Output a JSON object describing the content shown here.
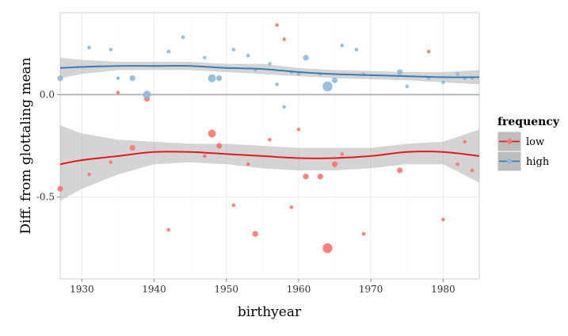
{
  "chart_data": {
    "type": "scatter",
    "xlabel": "birthyear",
    "ylabel": "Diff. from glottaling mean",
    "xlim": [
      1927,
      1985
    ],
    "ylim": [
      -0.9,
      0.4
    ],
    "x_ticks": [
      1930,
      1940,
      1950,
      1960,
      1970,
      1980
    ],
    "y_ticks": [
      0.0,
      -0.5
    ],
    "y_tick_labels": [
      "0.0",
      "-0.5"
    ],
    "reference_line_y": 0,
    "grid": true,
    "legend": {
      "title": "frequency",
      "position": "right",
      "entries": [
        "low",
        "high"
      ]
    },
    "series": [
      {
        "name": "low",
        "color": "#F8766D",
        "smooth_color": "#E41A1C",
        "points": [
          {
            "x": 1927,
            "y": -0.46,
            "size": 2
          },
          {
            "x": 1931,
            "y": -0.39,
            "size": 1
          },
          {
            "x": 1934,
            "y": -0.33,
            "size": 1
          },
          {
            "x": 1935,
            "y": 0.01,
            "size": 1
          },
          {
            "x": 1937,
            "y": -0.26,
            "size": 2
          },
          {
            "x": 1939,
            "y": -0.02,
            "size": 2
          },
          {
            "x": 1942,
            "y": -0.66,
            "size": 1
          },
          {
            "x": 1947,
            "y": -0.3,
            "size": 1
          },
          {
            "x": 1948,
            "y": -0.19,
            "size": 3
          },
          {
            "x": 1949,
            "y": -0.25,
            "size": 2
          },
          {
            "x": 1951,
            "y": -0.54,
            "size": 1
          },
          {
            "x": 1953,
            "y": -0.34,
            "size": 1
          },
          {
            "x": 1954,
            "y": -0.68,
            "size": 2
          },
          {
            "x": 1956,
            "y": -0.22,
            "size": 1
          },
          {
            "x": 1957,
            "y": 0.34,
            "size": 1
          },
          {
            "x": 1958,
            "y": 0.27,
            "size": 1
          },
          {
            "x": 1959,
            "y": -0.55,
            "size": 1
          },
          {
            "x": 1960,
            "y": -0.17,
            "size": 1
          },
          {
            "x": 1961,
            "y": -0.4,
            "size": 2
          },
          {
            "x": 1963,
            "y": -0.4,
            "size": 2
          },
          {
            "x": 1964,
            "y": -0.75,
            "size": 4
          },
          {
            "x": 1965,
            "y": -0.34,
            "size": 2
          },
          {
            "x": 1966,
            "y": -0.29,
            "size": 1
          },
          {
            "x": 1969,
            "y": -0.68,
            "size": 1
          },
          {
            "x": 1974,
            "y": -0.37,
            "size": 2
          },
          {
            "x": 1978,
            "y": 0.21,
            "size": 1
          },
          {
            "x": 1980,
            "y": -0.61,
            "size": 1
          },
          {
            "x": 1982,
            "y": -0.34,
            "size": 1
          },
          {
            "x": 1983,
            "y": -0.23,
            "size": 1
          },
          {
            "x": 1984,
            "y": -0.37,
            "size": 1
          }
        ],
        "smooth": {
          "x": [
            1927,
            1930,
            1935,
            1940,
            1945,
            1950,
            1955,
            1960,
            1965,
            1970,
            1975,
            1980,
            1985
          ],
          "y": [
            -0.34,
            -0.32,
            -0.3,
            -0.28,
            -0.28,
            -0.29,
            -0.3,
            -0.31,
            -0.31,
            -0.3,
            -0.28,
            -0.28,
            -0.3
          ],
          "upper": [
            -0.15,
            -0.19,
            -0.22,
            -0.23,
            -0.24,
            -0.24,
            -0.25,
            -0.26,
            -0.26,
            -0.26,
            -0.24,
            -0.23,
            -0.17
          ],
          "lower": [
            -0.52,
            -0.46,
            -0.39,
            -0.34,
            -0.33,
            -0.34,
            -0.36,
            -0.37,
            -0.37,
            -0.36,
            -0.34,
            -0.34,
            -0.43
          ]
        }
      },
      {
        "name": "high",
        "color": "#8DB8DD",
        "smooth_color": "#377EB8",
        "points": [
          {
            "x": 1927,
            "y": 0.08,
            "size": 2
          },
          {
            "x": 1931,
            "y": 0.23,
            "size": 1
          },
          {
            "x": 1934,
            "y": 0.22,
            "size": 1
          },
          {
            "x": 1935,
            "y": 0.08,
            "size": 1
          },
          {
            "x": 1937,
            "y": 0.08,
            "size": 2
          },
          {
            "x": 1939,
            "y": 0.0,
            "size": 3
          },
          {
            "x": 1942,
            "y": 0.21,
            "size": 1
          },
          {
            "x": 1944,
            "y": 0.28,
            "size": 1
          },
          {
            "x": 1947,
            "y": 0.18,
            "size": 1
          },
          {
            "x": 1948,
            "y": 0.08,
            "size": 3
          },
          {
            "x": 1949,
            "y": 0.08,
            "size": 2
          },
          {
            "x": 1951,
            "y": 0.22,
            "size": 1
          },
          {
            "x": 1953,
            "y": 0.19,
            "size": 1
          },
          {
            "x": 1954,
            "y": 0.12,
            "size": 1
          },
          {
            "x": 1956,
            "y": 0.15,
            "size": 1
          },
          {
            "x": 1957,
            "y": 0.05,
            "size": 1
          },
          {
            "x": 1958,
            "y": -0.06,
            "size": 1
          },
          {
            "x": 1959,
            "y": 0.11,
            "size": 1
          },
          {
            "x": 1960,
            "y": 0.1,
            "size": 1
          },
          {
            "x": 1961,
            "y": 0.18,
            "size": 2
          },
          {
            "x": 1963,
            "y": 0.1,
            "size": 1
          },
          {
            "x": 1964,
            "y": 0.04,
            "size": 4
          },
          {
            "x": 1965,
            "y": 0.07,
            "size": 2
          },
          {
            "x": 1966,
            "y": 0.24,
            "size": 1
          },
          {
            "x": 1968,
            "y": 0.22,
            "size": 1
          },
          {
            "x": 1969,
            "y": 0.1,
            "size": 1
          },
          {
            "x": 1974,
            "y": 0.11,
            "size": 2
          },
          {
            "x": 1975,
            "y": 0.04,
            "size": 1
          },
          {
            "x": 1978,
            "y": 0.08,
            "size": 1
          },
          {
            "x": 1980,
            "y": 0.06,
            "size": 1
          },
          {
            "x": 1982,
            "y": 0.1,
            "size": 1
          },
          {
            "x": 1983,
            "y": 0.08,
            "size": 1
          },
          {
            "x": 1984,
            "y": 0.08,
            "size": 1
          }
        ],
        "smooth": {
          "x": [
            1927,
            1930,
            1935,
            1940,
            1945,
            1950,
            1955,
            1960,
            1965,
            1970,
            1975,
            1980,
            1985
          ],
          "y": [
            0.13,
            0.135,
            0.14,
            0.14,
            0.14,
            0.13,
            0.125,
            0.11,
            0.1,
            0.095,
            0.09,
            0.085,
            0.085
          ],
          "upper": [
            0.18,
            0.17,
            0.16,
            0.16,
            0.16,
            0.15,
            0.15,
            0.13,
            0.12,
            0.115,
            0.11,
            0.11,
            0.12
          ],
          "lower": [
            0.08,
            0.1,
            0.12,
            0.12,
            0.12,
            0.11,
            0.1,
            0.09,
            0.08,
            0.075,
            0.07,
            0.06,
            0.05
          ]
        }
      }
    ]
  }
}
